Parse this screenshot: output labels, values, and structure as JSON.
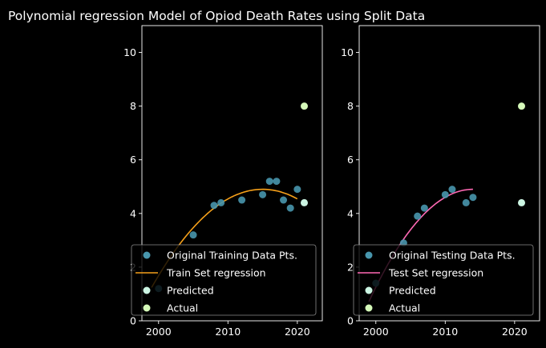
{
  "figure": {
    "title": "Polynomial regression Model of Opiod Death Rates using Split Data",
    "background": "#000000",
    "axis_color": "#ffffff",
    "text_color": "#ffffff"
  },
  "chart_data": [
    {
      "type": "scatter",
      "title": "",
      "xlabel": "",
      "ylabel": "",
      "xlim": [
        1997.6,
        2023.6
      ],
      "ylim": [
        0,
        11
      ],
      "xticks": [
        2000,
        2010,
        2020
      ],
      "yticks": [
        0,
        2,
        4,
        6,
        8,
        10
      ],
      "grid": false,
      "legend_position": "lower-left",
      "series": [
        {
          "name": "Original Training Data Pts.",
          "kind": "scatter",
          "color": "#4896ad",
          "points": [
            [
              2000,
              1.2
            ],
            [
              2005,
              3.2
            ],
            [
              2008,
              4.3
            ],
            [
              2009,
              4.4
            ],
            [
              2012,
              4.5
            ],
            [
              2015,
              4.7
            ],
            [
              2016,
              5.2
            ],
            [
              2017,
              5.2
            ],
            [
              2018,
              4.5
            ],
            [
              2019,
              4.2
            ],
            [
              2020,
              4.9
            ]
          ]
        },
        {
          "name": "Train Set regression",
          "kind": "line",
          "color": "#f5a01a",
          "poly": {
            "x0": 2015,
            "a": -0.0143,
            "b": 4.9,
            "range": [
              1999,
              2020
            ]
          }
        },
        {
          "name": "Predicted",
          "kind": "scatter",
          "color": "#ccf5e3",
          "points": [
            [
              2021,
              4.4
            ]
          ]
        },
        {
          "name": "Actual",
          "kind": "scatter",
          "color": "#d5f9b9",
          "points": [
            [
              2021,
              8.0
            ]
          ]
        }
      ]
    },
    {
      "type": "scatter",
      "title": "",
      "xlabel": "",
      "ylabel": "",
      "xlim": [
        1997.6,
        2023.6
      ],
      "ylim": [
        0,
        11
      ],
      "xticks": [
        2000,
        2010,
        2020
      ],
      "yticks": [
        0,
        2,
        4,
        6,
        8,
        10
      ],
      "grid": false,
      "legend_position": "lower-left",
      "series": [
        {
          "name": "Original Testing Data Pts.",
          "kind": "scatter",
          "color": "#4896ad",
          "points": [
            [
              2000,
              1.4
            ],
            [
              2004,
              2.9
            ],
            [
              2006,
              3.9
            ],
            [
              2007,
              4.2
            ],
            [
              2010,
              4.7
            ],
            [
              2011,
              4.9
            ],
            [
              2013,
              4.4
            ],
            [
              2014,
              4.6
            ]
          ]
        },
        {
          "name": "Test Set regression",
          "kind": "line",
          "color": "#ff69b4",
          "poly": {
            "x0": 2014,
            "a": -0.0186,
            "b": 4.9,
            "range": [
              1999,
              2014
            ]
          }
        },
        {
          "name": "Predicted",
          "kind": "scatter",
          "color": "#ccf5e3",
          "points": [
            [
              2021,
              4.4
            ]
          ]
        },
        {
          "name": "Actual",
          "kind": "scatter",
          "color": "#d5f9b9",
          "points": [
            [
              2021,
              8.0
            ]
          ]
        }
      ]
    }
  ]
}
